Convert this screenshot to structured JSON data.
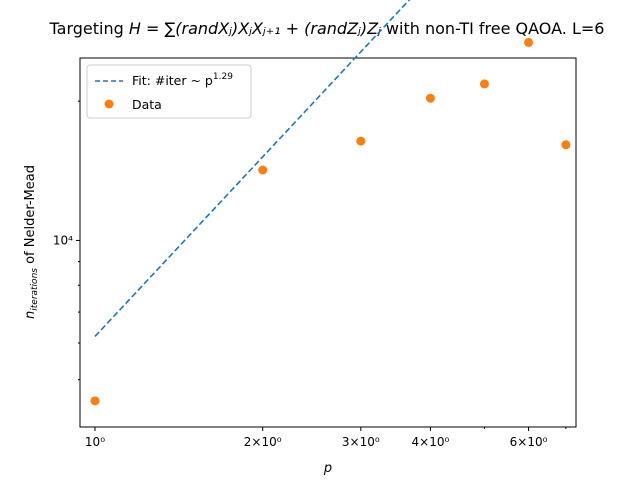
{
  "chart_data": {
    "type": "scatter",
    "title_prefix": "Targeting ",
    "title_math": "H = ∑(randXⱼ)XⱼXⱼ₊₁ + (randZⱼ)Zⱼ",
    "title_suffix": " with non-TI free QAOA. L=6",
    "xlabel": "p",
    "ylabel_main": "n",
    "ylabel_sub": "iterations",
    "ylabel_suffix": " of Nelder-Mead",
    "xscale": "log",
    "yscale": "log",
    "xlim": [
      0.94,
      7.3
    ],
    "ylim": [
      3950,
      24800
    ],
    "x_ticks": [
      {
        "value": 1,
        "label": "10⁰"
      },
      {
        "value": 2,
        "label": "2×10⁰"
      },
      {
        "value": 3,
        "label": "3×10⁰"
      },
      {
        "value": 4,
        "label": "4×10⁰"
      },
      {
        "value": 6,
        "label": "6×10⁰"
      }
    ],
    "y_ticks": [
      {
        "value": 10000,
        "label": "10⁴"
      }
    ],
    "legend": {
      "position": "upper left",
      "fit_label": "Fit: #iter ~ p",
      "fit_exponent": "1.29",
      "data_label": "Data"
    },
    "series": [
      {
        "name": "Data",
        "kind": "scatter",
        "color": "#ff7f0e",
        "points": [
          {
            "x": 1,
            "y": 4500
          },
          {
            "x": 2,
            "y": 14200
          },
          {
            "x": 3,
            "y": 16400
          },
          {
            "x": 4,
            "y": 20300
          },
          {
            "x": 5,
            "y": 21800
          },
          {
            "x": 6,
            "y": 26800
          },
          {
            "x": 7,
            "y": 16100
          }
        ]
      },
      {
        "name": "Fit",
        "kind": "line",
        "style": "dashed",
        "color": "#1f77b4",
        "coefficient": 6200,
        "exponent": 1.29,
        "x_range": [
          1,
          7
        ]
      }
    ]
  }
}
